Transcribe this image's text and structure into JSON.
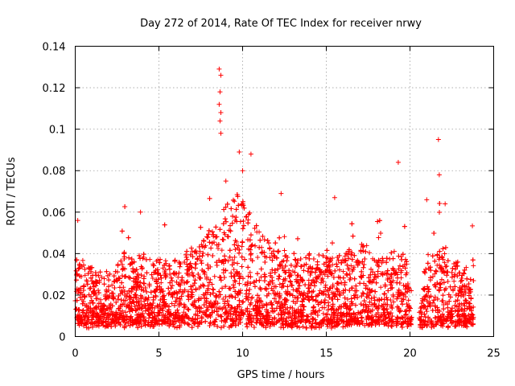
{
  "chart_data": {
    "type": "scatter",
    "title": "Day 272 of 2014, Rate Of TEC Index for receiver nrwy",
    "xlabel": "GPS time / hours",
    "ylabel": "ROTI / TECUs",
    "xlim": [
      0,
      25
    ],
    "ylim": [
      0,
      0.14
    ],
    "xticks": [
      0,
      5,
      10,
      15,
      20,
      25
    ],
    "yticks": [
      0,
      0.02,
      0.04,
      0.06,
      0.08,
      0.1,
      0.12,
      0.14
    ],
    "xtick_labels": [
      "0",
      "5",
      "10",
      "15",
      "20",
      "25"
    ],
    "ytick_labels": [
      "0",
      "0.02",
      "0.04",
      "0.06",
      "0.08",
      "0.1",
      "0.12",
      "0.14"
    ],
    "grid": true,
    "marker": "plus",
    "color": "#ff0000",
    "series": [
      {
        "name": "ROTI",
        "notable_points": [
          {
            "x": 8.6,
            "y": 0.129
          },
          {
            "x": 8.7,
            "y": 0.126
          },
          {
            "x": 8.65,
            "y": 0.118
          },
          {
            "x": 8.6,
            "y": 0.112
          },
          {
            "x": 8.7,
            "y": 0.108
          },
          {
            "x": 8.65,
            "y": 0.104
          },
          {
            "x": 8.7,
            "y": 0.098
          },
          {
            "x": 9.8,
            "y": 0.089
          },
          {
            "x": 10.5,
            "y": 0.088
          },
          {
            "x": 21.7,
            "y": 0.095
          },
          {
            "x": 21.75,
            "y": 0.078
          },
          {
            "x": 19.3,
            "y": 0.084
          },
          {
            "x": 0.15,
            "y": 0.056
          },
          {
            "x": 3.9,
            "y": 0.06
          },
          {
            "x": 12.3,
            "y": 0.069
          },
          {
            "x": 15.5,
            "y": 0.067
          },
          {
            "x": 21.0,
            "y": 0.066
          },
          {
            "x": 22.1,
            "y": 0.064
          },
          {
            "x": 9.0,
            "y": 0.075
          },
          {
            "x": 10.0,
            "y": 0.08
          }
        ]
      }
    ]
  }
}
